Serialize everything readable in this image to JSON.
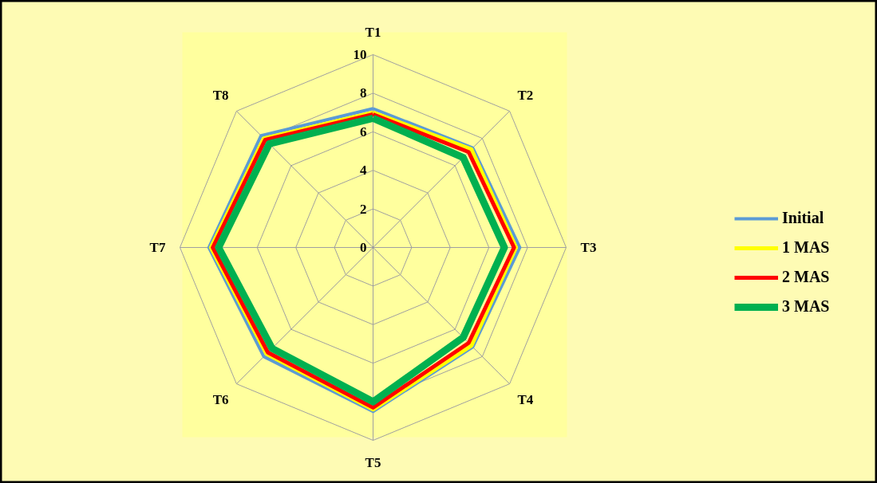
{
  "chart_data": {
    "type": "radar",
    "categories": [
      "T1",
      "T2",
      "T3",
      "T4",
      "T5",
      "T6",
      "T7",
      "T8"
    ],
    "ylim": [
      0,
      10
    ],
    "yticks": [
      0,
      2,
      4,
      6,
      8,
      10
    ],
    "grid": true,
    "legend": "right",
    "series": [
      {
        "name": "Initial",
        "color": "#5b9bd5",
        "values": [
          7.2,
          7.3,
          7.6,
          7.3,
          8.5,
          8.0,
          8.5,
          8.2
        ]
      },
      {
        "name": "1 MAS",
        "color": "#ffff00",
        "values": [
          7.0,
          7.2,
          7.4,
          7.2,
          8.4,
          7.8,
          8.4,
          8.0
        ]
      },
      {
        "name": "2 MAS",
        "color": "#ff0000",
        "values": [
          6.9,
          7.0,
          7.3,
          7.0,
          8.3,
          7.7,
          8.3,
          7.9
        ]
      },
      {
        "name": "3 MAS",
        "color": "#00b050",
        "values": [
          6.7,
          6.6,
          6.8,
          6.6,
          8.0,
          7.4,
          8.0,
          7.6
        ]
      }
    ]
  }
}
